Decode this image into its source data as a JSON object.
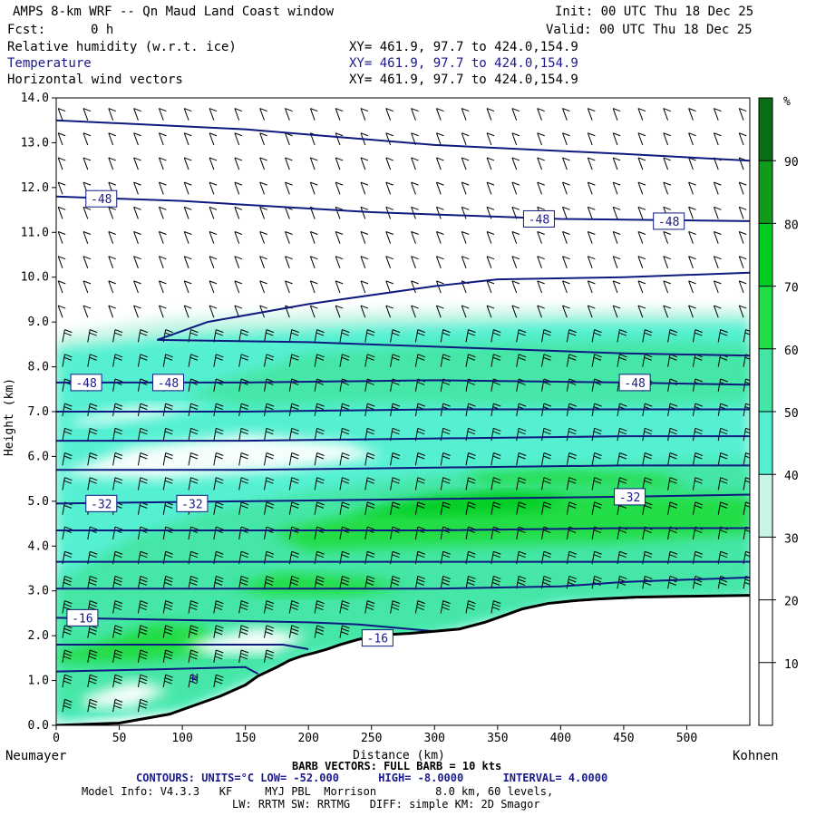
{
  "header": {
    "title": "AMPS 8-km WRF -- Qn Maud Land Coast window",
    "init": "Init: 00 UTC Thu 18 Dec 25",
    "fcst_label": "Fcst:",
    "fcst_value": "0 h",
    "valid": "Valid: 00 UTC Thu 18 Dec 25",
    "field1": "Relative humidity (w.r.t. ice)",
    "field2": "Temperature",
    "field3": "Horizontal wind vectors",
    "xy1": "XY= 461.9, 97.7 to 424.0,154.9",
    "xy2": "XY= 461.9, 97.7 to 424.0,154.9",
    "xy3": "XY= 461.9, 97.7 to 424.0,154.9"
  },
  "footer": {
    "left_station": "Neumayer",
    "right_station": "Kohnen",
    "barb": "BARB VECTORS: FULL BARB = 10 kts",
    "contours": "CONTOURS: UNITS=°C LOW= -52.000      HIGH= -8.0000      INTERVAL= 4.0000",
    "model1": "Model Info: V4.3.3   KF     MYJ PBL  Morrison         8.0 km, 60 levels,",
    "model2": "LW: RRTM SW: RRTMG   DIFF: simple KM: 2D Smagor"
  },
  "colors": {
    "rh": [
      "#ffffff",
      "#ffffff",
      "#ffffff",
      "#c9f5e6",
      "#55f0d2",
      "#44e6a6",
      "#22dd44",
      "#00cc22",
      "#119b1a",
      "#0a6e14"
    ],
    "contour": "#0f1a80",
    "terrain": "#000000"
  },
  "chart_data": {
    "type": "cross-section",
    "xlabel": "Distance (km)",
    "ylabel": "Height (km)",
    "xlim": [
      0,
      550
    ],
    "ylim": [
      0,
      14
    ],
    "x_ticks": [
      0,
      50,
      100,
      150,
      200,
      250,
      300,
      350,
      400,
      450,
      500
    ],
    "x_tick_labels": [
      "0",
      "50",
      "100",
      "150",
      "200",
      "250",
      "300",
      "350",
      "400",
      "450",
      "500"
    ],
    "y_ticks": [
      0,
      1,
      2,
      3,
      4,
      5,
      6,
      7,
      8,
      9,
      10,
      11,
      12,
      13,
      14
    ],
    "y_tick_labels": [
      "0.0",
      "1.0",
      "2.0",
      "3.0",
      "4.0",
      "5.0",
      "6.0",
      "7.0",
      "8.0",
      "9.0",
      "10.0",
      "11.0",
      "12.0",
      "13.0",
      "14.0"
    ],
    "colorbar": {
      "unit": "%",
      "levels": [
        0,
        10,
        20,
        30,
        40,
        50,
        60,
        70,
        80,
        90,
        100
      ],
      "labels": [
        "10",
        "20",
        "30",
        "40",
        "50",
        "60",
        "70",
        "80",
        "90"
      ]
    },
    "terrain": {
      "x": [
        0,
        50,
        90,
        110,
        130,
        150,
        160,
        175,
        185,
        195,
        205,
        215,
        225,
        240,
        260,
        280,
        300,
        320,
        340,
        355,
        370,
        390,
        410,
        430,
        460,
        500,
        550
      ],
      "y": [
        0.0,
        0.05,
        0.25,
        0.45,
        0.65,
        0.9,
        1.1,
        1.3,
        1.45,
        1.55,
        1.62,
        1.7,
        1.8,
        1.92,
        2.02,
        2.05,
        2.1,
        2.15,
        2.3,
        2.45,
        2.6,
        2.72,
        2.78,
        2.82,
        2.86,
        2.88,
        2.9
      ]
    },
    "temperature_contours": [
      {
        "x": [
          0,
          150,
          300,
          450,
          550
        ],
        "y": [
          13.5,
          13.3,
          12.95,
          12.75,
          12.6
        ]
      },
      {
        "x": [
          0,
          100,
          250,
          400,
          550
        ],
        "y": [
          11.8,
          11.7,
          11.45,
          11.3,
          11.25
        ]
      },
      {
        "x": [
          80,
          120,
          200,
          300,
          350,
          450,
          550
        ],
        "y": [
          8.6,
          9.0,
          9.4,
          9.8,
          9.95,
          10.0,
          10.1
        ]
      },
      {
        "x": [
          80,
          200,
          350,
          450,
          550
        ],
        "y": [
          8.6,
          8.55,
          8.4,
          8.3,
          8.25
        ]
      },
      {
        "x": [
          0,
          150,
          300,
          450,
          550
        ],
        "y": [
          7.65,
          7.65,
          7.7,
          7.65,
          7.6
        ]
      },
      {
        "x": [
          0,
          150,
          300,
          450,
          550
        ],
        "y": [
          7.0,
          7.0,
          7.05,
          7.05,
          7.05
        ]
      },
      {
        "x": [
          0,
          150,
          300,
          450,
          550
        ],
        "y": [
          6.35,
          6.35,
          6.4,
          6.45,
          6.45
        ]
      },
      {
        "x": [
          0,
          150,
          300,
          450,
          550
        ],
        "y": [
          5.7,
          5.7,
          5.75,
          5.8,
          5.8
        ]
      },
      {
        "x": [
          0,
          150,
          300,
          450,
          550
        ],
        "y": [
          4.95,
          5.0,
          5.05,
          5.1,
          5.15
        ]
      },
      {
        "x": [
          0,
          150,
          300,
          450,
          550
        ],
        "y": [
          4.35,
          4.35,
          4.35,
          4.4,
          4.4
        ]
      },
      {
        "x": [
          0,
          150,
          300,
          450,
          550
        ],
        "y": [
          3.65,
          3.65,
          3.65,
          3.65,
          3.65
        ]
      },
      {
        "x": [
          0,
          150,
          300,
          400,
          450,
          550
        ],
        "y": [
          3.05,
          3.05,
          3.05,
          3.1,
          3.2,
          3.3
        ]
      },
      {
        "x": [
          0,
          100,
          200,
          240,
          280,
          300
        ],
        "y": [
          2.4,
          2.35,
          2.3,
          2.25,
          2.15,
          2.1
        ]
      },
      {
        "x": [
          0,
          100,
          180,
          200
        ],
        "y": [
          1.8,
          1.8,
          1.8,
          1.7
        ]
      },
      {
        "x": [
          0,
          80,
          150,
          160
        ],
        "y": [
          1.2,
          1.25,
          1.3,
          1.15
        ]
      }
    ],
    "contour_labels": [
      {
        "x": 25,
        "y": 11.75,
        "text": "-48"
      },
      {
        "x": 372,
        "y": 11.3,
        "text": "-48"
      },
      {
        "x": 475,
        "y": 11.25,
        "text": "-48"
      },
      {
        "x": 13,
        "y": 7.65,
        "text": "-48"
      },
      {
        "x": 78,
        "y": 7.65,
        "text": "-48"
      },
      {
        "x": 448,
        "y": 7.65,
        "text": "-48"
      },
      {
        "x": 25,
        "y": 4.95,
        "text": "-32"
      },
      {
        "x": 97,
        "y": 4.95,
        "text": "-32"
      },
      {
        "x": 444,
        "y": 5.1,
        "text": "-32"
      },
      {
        "x": 10,
        "y": 2.4,
        "text": "-16"
      },
      {
        "x": 244,
        "y": 1.95,
        "text": "-16"
      }
    ],
    "extrema": [
      {
        "x": 110,
        "y": 0.95,
        "text": "H"
      }
    ]
  }
}
